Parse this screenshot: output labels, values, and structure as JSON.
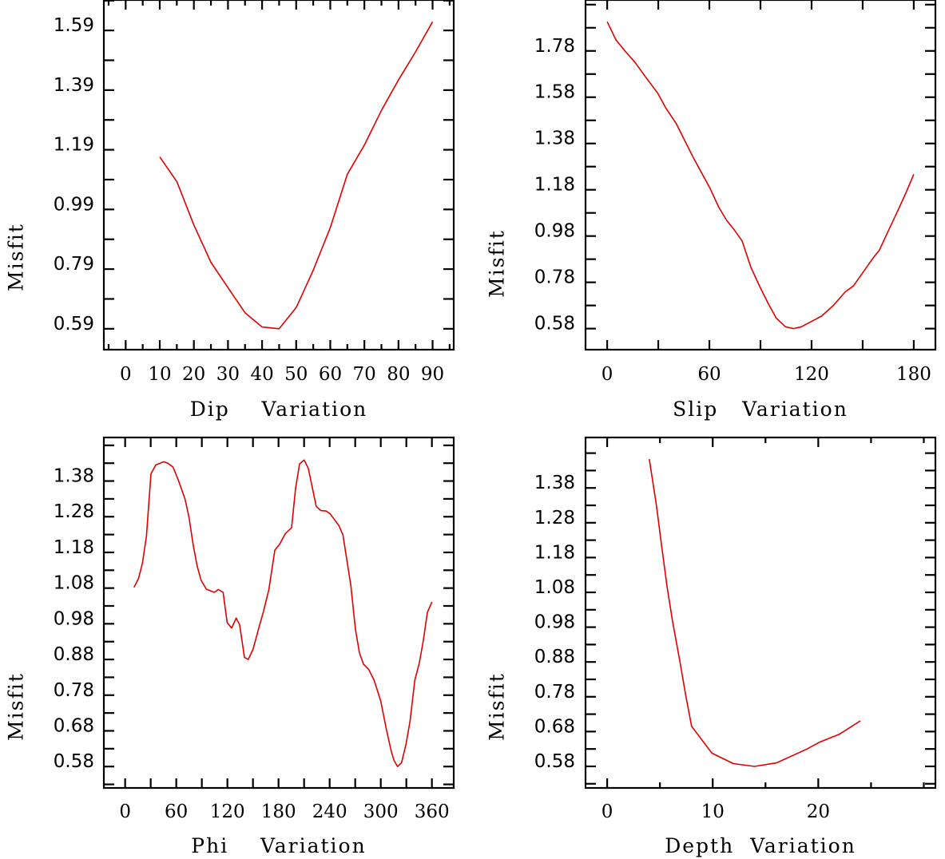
{
  "chart_data": [
    {
      "type": "line",
      "title": "",
      "xlabel": "Dip    Variation",
      "ylabel": "Misfit",
      "xlim": [
        -6.4,
        96.2
      ],
      "ylim": [
        0.52,
        1.692
      ],
      "grid": false,
      "xticks": [
        0,
        10,
        20,
        30,
        40,
        50,
        60,
        70,
        80,
        90
      ],
      "xtick_labels": [
        "0",
        "10",
        "20",
        "30",
        "40",
        "50",
        "60",
        "70",
        "80",
        "90"
      ],
      "xminor_step": 5,
      "yticks": [
        0.59,
        0.79,
        0.99,
        1.19,
        1.39,
        1.59
      ],
      "ytick_labels": [
        "0.59",
        "0.79",
        "0.99",
        "1.19",
        "1.39",
        "1.59"
      ],
      "yminor_step": 0.1,
      "color": "#e00000",
      "x": [
        10,
        15,
        20,
        25,
        30,
        35,
        40,
        45,
        50,
        55,
        60,
        65,
        70,
        75,
        80,
        85,
        90
      ],
      "y": [
        1.166,
        1.083,
        0.938,
        0.813,
        0.728,
        0.644,
        0.596,
        0.59,
        0.661,
        0.786,
        0.929,
        1.108,
        1.206,
        1.322,
        1.424,
        1.518,
        1.619
      ]
    },
    {
      "type": "line",
      "title": "",
      "xlabel": "Slip   Variation",
      "ylabel": "Misfit",
      "xlim": [
        -12.7,
        192.7
      ],
      "ylim": [
        0.489,
        2.0
      ],
      "grid": false,
      "xticks": [
        0,
        60,
        120,
        180
      ],
      "xtick_labels": [
        "0",
        "60",
        "120",
        "180"
      ],
      "xminor_step": 30,
      "yticks": [
        0.58,
        0.78,
        0.98,
        1.18,
        1.38,
        1.58,
        1.78
      ],
      "ytick_labels": [
        "0.58",
        "0.78",
        "0.98",
        "1.18",
        "1.38",
        "1.58",
        "1.78"
      ],
      "yminor_step": 0.1,
      "color": "#e00000",
      "x": [
        0,
        5.2,
        10.9,
        16.4,
        22.7,
        29.7,
        34.4,
        40.6,
        45.3,
        50.8,
        55.5,
        60.2,
        65.6,
        70.3,
        74.2,
        79.2,
        84.4,
        89.8,
        94.5,
        99.2,
        104.7,
        109.4,
        114,
        119.5,
        125.8,
        132.8,
        139.8,
        144.5,
        150,
        155.5,
        159.8,
        164.9,
        171.1,
        175.8,
        180
      ],
      "y": [
        1.906,
        1.827,
        1.776,
        1.73,
        1.666,
        1.597,
        1.534,
        1.465,
        1.396,
        1.316,
        1.252,
        1.189,
        1.103,
        1.046,
        1.011,
        0.959,
        0.844,
        0.758,
        0.689,
        0.626,
        0.588,
        0.58,
        0.588,
        0.609,
        0.634,
        0.68,
        0.739,
        0.764,
        0.821,
        0.879,
        0.919,
        1.0,
        1.097,
        1.174,
        1.247
      ]
    },
    {
      "type": "line",
      "title": "",
      "xlabel": "Phi    Variation",
      "ylabel": "Misfit",
      "xlim": [
        -25,
        385.6
      ],
      "ylim": [
        0.52,
        1.502
      ],
      "grid": false,
      "xticks": [
        0,
        60,
        120,
        180,
        240,
        300,
        360
      ],
      "xtick_labels": [
        "0",
        "60",
        "120",
        "180",
        "240",
        "300",
        "360"
      ],
      "xminor_step": 30,
      "yticks": [
        0.58,
        0.68,
        0.78,
        0.88,
        0.98,
        1.08,
        1.18,
        1.28,
        1.38
      ],
      "ytick_labels": [
        "0.58",
        "0.68",
        "0.78",
        "0.88",
        "0.98",
        "1.08",
        "1.18",
        "1.28",
        "1.38"
      ],
      "yminor_step": 0.05,
      "color": "#e00000",
      "x": [
        10.3,
        15.6,
        20.3,
        25.0,
        30.3,
        35.9,
        45.3,
        50.0,
        56.2,
        62.5,
        70.3,
        75.0,
        79.7,
        84.4,
        89.1,
        95.3,
        104.7,
        109.3,
        115.0,
        119.7,
        125.0,
        130.3,
        134.4,
        140.0,
        144.4,
        150.0,
        156.9,
        162.5,
        168.7,
        175.6,
        181.2,
        188.1,
        195.3,
        200.0,
        204.7,
        210.0,
        215.0,
        224.3,
        229.7,
        235.9,
        240.6,
        245.9,
        250.9,
        255.6,
        264.9,
        270.3,
        275.0,
        279.7,
        285.9,
        292.1,
        300.0,
        306.2,
        312.5,
        315.6,
        319.7,
        324.4,
        329.6,
        334.3,
        339.9,
        345.3,
        350.0,
        354.7,
        360.0
      ],
      "y": [
        1.082,
        1.106,
        1.15,
        1.225,
        1.4,
        1.425,
        1.434,
        1.43,
        1.419,
        1.382,
        1.329,
        1.277,
        1.203,
        1.143,
        1.102,
        1.077,
        1.068,
        1.076,
        1.068,
        0.983,
        0.968,
        0.996,
        0.977,
        0.886,
        0.88,
        0.908,
        0.968,
        1.016,
        1.076,
        1.186,
        1.203,
        1.233,
        1.249,
        1.359,
        1.428,
        1.439,
        1.415,
        1.309,
        1.297,
        1.296,
        1.288,
        1.271,
        1.255,
        1.229,
        1.087,
        0.964,
        0.898,
        0.867,
        0.852,
        0.822,
        0.763,
        0.688,
        0.621,
        0.597,
        0.58,
        0.591,
        0.643,
        0.707,
        0.822,
        0.871,
        0.934,
        1.012,
        1.041
      ]
    },
    {
      "type": "line",
      "title": "",
      "xlabel": "Depth  Variation",
      "ylabel": "Misfit",
      "xlim": [
        -2.05,
        31.1
      ],
      "ylim": [
        0.518,
        1.525
      ],
      "grid": false,
      "xticks": [
        0,
        10,
        20
      ],
      "xtick_labels": [
        "0",
        "10",
        "20"
      ],
      "xminor_step": 5,
      "yticks": [
        0.58,
        0.68,
        0.78,
        0.88,
        0.98,
        1.08,
        1.18,
        1.28,
        1.38
      ],
      "ytick_labels": [
        "0.58",
        "0.68",
        "0.78",
        "0.88",
        "0.98",
        "1.08",
        "1.18",
        "1.28",
        "1.38"
      ],
      "yminor_step": 0.05,
      "color": "#e00000",
      "x": [
        3.99,
        4.67,
        5.17,
        5.68,
        6.19,
        6.89,
        7.45,
        8.0,
        9.92,
        11.95,
        13.96,
        16.04,
        18.94,
        20.08,
        21.97,
        23.99
      ],
      "y": [
        1.463,
        1.329,
        1.211,
        1.096,
        0.997,
        0.882,
        0.783,
        0.695,
        0.618,
        0.588,
        0.58,
        0.59,
        0.63,
        0.649,
        0.672,
        0.711
      ]
    }
  ]
}
